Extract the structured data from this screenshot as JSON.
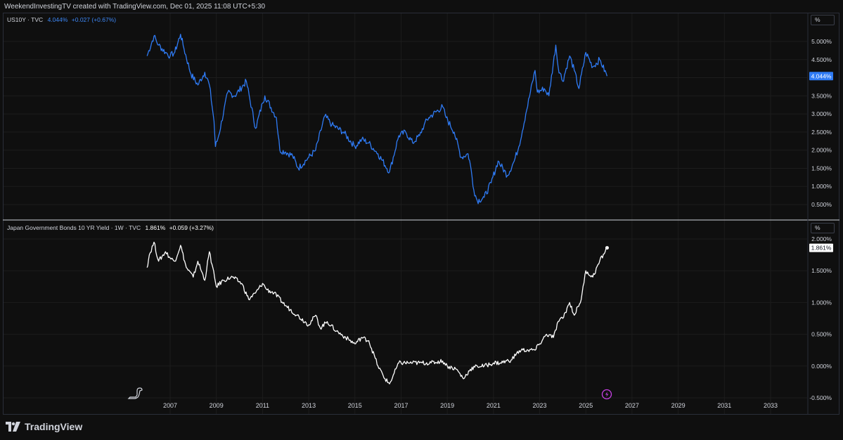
{
  "header": {
    "credit": "WeekendInvestingTV created with TradingView.com, Dec 01, 2025 11:08 UTC+5:30"
  },
  "footer": {
    "brand": "TradingView",
    "logo_icon": "tradingview-logo-icon"
  },
  "colors": {
    "background": "#0f0f0f",
    "grid": "#1c1c1c",
    "us_series": "#2f7bf5",
    "jp_series": "#ffffff",
    "text": "#d1d4dc",
    "us_change": "#3d87f5"
  },
  "icons": {
    "bottom_left": "dino-icon",
    "bottom_marker": "lightning-icon"
  },
  "chart_data": [
    {
      "type": "line",
      "pane": "top",
      "legend": {
        "symbol": "US10Y · TVC",
        "value": "4.044%",
        "change": "+0.027 (+0.67%)"
      },
      "unit_button": "%",
      "last_value_label": "4.044%",
      "y_ticks": [
        "5.000%",
        "4.500%",
        "4.000%",
        "3.500%",
        "3.000%",
        "2.500%",
        "2.000%",
        "1.500%",
        "1.000%",
        "0.500%"
      ],
      "y_range": [
        0.15,
        5.55
      ],
      "x": [
        2006.0,
        2006.3,
        2006.5,
        2006.8,
        2007.0,
        2007.2,
        2007.45,
        2007.6,
        2007.9,
        2008.2,
        2008.5,
        2008.7,
        2008.9,
        2008.96,
        2009.1,
        2009.5,
        2009.8,
        2010.3,
        2010.7,
        2011.0,
        2011.1,
        2011.6,
        2011.75,
        2012.0,
        2012.3,
        2012.55,
        2013.0,
        2013.3,
        2013.7,
        2014.0,
        2014.5,
        2015.0,
        2015.3,
        2015.6,
        2016.0,
        2016.5,
        2016.9,
        2017.2,
        2017.5,
        2017.8,
        2018.0,
        2018.2,
        2018.8,
        2018.95,
        2019.3,
        2019.6,
        2019.9,
        2020.0,
        2020.15,
        2020.3,
        2020.6,
        2020.9,
        2021.2,
        2021.6,
        2021.9,
        2022.1,
        2022.4,
        2022.8,
        2022.9,
        2023.2,
        2023.4,
        2023.7,
        2023.8,
        2024.0,
        2024.3,
        2024.5,
        2024.7,
        2025.0,
        2025.3,
        2025.6,
        2025.92
      ],
      "y": [
        4.6,
        5.15,
        4.9,
        4.7,
        4.6,
        4.7,
        5.2,
        4.8,
        4.1,
        3.8,
        4.15,
        3.8,
        2.8,
        2.1,
        2.4,
        3.6,
        3.5,
        3.9,
        2.6,
        3.3,
        3.5,
        2.9,
        2.0,
        1.95,
        1.85,
        1.5,
        1.8,
        2.0,
        2.95,
        2.7,
        2.5,
        2.1,
        2.3,
        2.2,
        1.9,
        1.4,
        2.4,
        2.5,
        2.2,
        2.4,
        2.7,
        2.9,
        3.2,
        2.9,
        2.5,
        1.8,
        1.9,
        1.6,
        0.9,
        0.6,
        0.7,
        1.1,
        1.7,
        1.3,
        1.7,
        2.1,
        3.0,
        4.2,
        3.6,
        3.7,
        3.5,
        4.9,
        4.3,
        3.9,
        4.6,
        4.2,
        3.7,
        4.7,
        4.3,
        4.5,
        4.044
      ]
    },
    {
      "type": "line",
      "pane": "bottom",
      "legend": {
        "symbol": "Japan Government Bonds 10 YR Yield · 1W · TVC",
        "value": "1.861%",
        "change": "+0.059 (+3.27%)"
      },
      "unit_button": "%",
      "last_value_label": "1.861%",
      "y_ticks": [
        "2.000%",
        "1.500%",
        "1.000%",
        "0.500%",
        "0.000%",
        "-0.500%"
      ],
      "y_range": [
        -0.52,
        2.0
      ],
      "x": [
        2006.0,
        2006.1,
        2006.3,
        2006.5,
        2006.8,
        2007.0,
        2007.2,
        2007.45,
        2007.7,
        2008.0,
        2008.2,
        2008.5,
        2008.7,
        2009.0,
        2009.3,
        2009.7,
        2010.1,
        2010.4,
        2010.7,
        2011.0,
        2011.2,
        2011.5,
        2012.0,
        2012.5,
        2013.0,
        2013.3,
        2013.5,
        2013.8,
        2014.2,
        2014.6,
        2015.0,
        2015.3,
        2015.6,
        2016.0,
        2016.3,
        2016.5,
        2016.9,
        2017.3,
        2017.8,
        2018.3,
        2018.8,
        2019.0,
        2019.4,
        2019.7,
        2020.0,
        2020.3,
        2020.6,
        2021.0,
        2021.3,
        2021.8,
        2022.0,
        2022.2,
        2022.5,
        2022.8,
        2023.0,
        2023.3,
        2023.6,
        2023.8,
        2024.0,
        2024.3,
        2024.5,
        2024.8,
        2025.0,
        2025.3,
        2025.6,
        2025.92
      ],
      "y": [
        1.55,
        1.75,
        1.95,
        1.65,
        1.8,
        1.7,
        1.65,
        1.9,
        1.55,
        1.4,
        1.65,
        1.35,
        1.8,
        1.25,
        1.35,
        1.4,
        1.3,
        1.05,
        1.15,
        1.3,
        1.2,
        1.15,
        0.95,
        0.8,
        0.65,
        0.8,
        0.6,
        0.7,
        0.55,
        0.45,
        0.35,
        0.45,
        0.4,
        0.0,
        -0.2,
        -0.28,
        0.05,
        0.05,
        0.05,
        0.05,
        0.08,
        0.0,
        -0.05,
        -0.2,
        -0.05,
        0.0,
        0.0,
        0.05,
        0.05,
        0.1,
        0.2,
        0.25,
        0.25,
        0.25,
        0.35,
        0.5,
        0.45,
        0.7,
        0.75,
        1.0,
        0.8,
        1.05,
        1.5,
        1.4,
        1.65,
        1.861
      ]
    }
  ],
  "x_axis": {
    "ticks": [
      "2007",
      "2009",
      "2011",
      "2013",
      "2015",
      "2017",
      "2019",
      "2021",
      "2023",
      "2025",
      "2027",
      "2029",
      "2031",
      "2033"
    ],
    "tick_years": [
      2007,
      2009,
      2011,
      2013,
      2015,
      2017,
      2019,
      2021,
      2023,
      2025,
      2027,
      2029,
      2031,
      2033
    ]
  }
}
